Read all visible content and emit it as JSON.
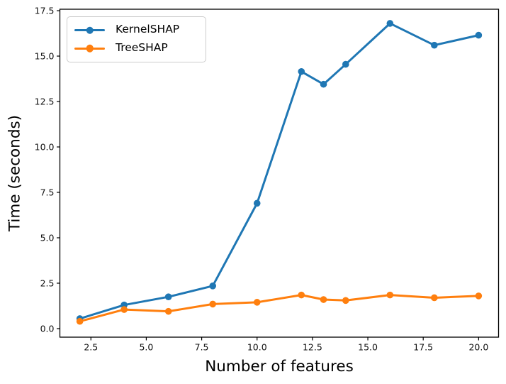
{
  "chart_data": {
    "type": "line",
    "title": "",
    "xlabel": "Number of features",
    "ylabel": "Time (seconds)",
    "x": [
      2,
      4,
      6,
      8,
      10,
      12,
      13,
      14,
      16,
      18,
      20
    ],
    "series": [
      {
        "name": "KernelSHAP",
        "color": "#1f77b4",
        "marker": "circle",
        "values": [
          0.55,
          1.3,
          1.75,
          2.35,
          6.9,
          14.15,
          13.45,
          14.55,
          16.8,
          15.6,
          16.15
        ]
      },
      {
        "name": "TreeSHAP",
        "color": "#ff7f0e",
        "marker": "circle",
        "values": [
          0.4,
          1.05,
          0.95,
          1.35,
          1.45,
          1.85,
          1.6,
          1.55,
          1.85,
          1.7,
          1.8
        ]
      }
    ],
    "xlim": [
      1.1,
      20.9
    ],
    "ylim": [
      -0.47,
      17.58
    ],
    "x_ticks": [
      2.5,
      5,
      7.5,
      10,
      12.5,
      15,
      17.5,
      20
    ],
    "x_tick_labels": [
      "2.5",
      "5.0",
      "7.5",
      "10.0",
      "12.5",
      "15.0",
      "17.5",
      "20.0"
    ],
    "y_ticks": [
      0,
      2.5,
      5,
      7.5,
      10,
      12.5,
      15,
      17.5
    ],
    "y_tick_labels": [
      "0.0",
      "2.5",
      "5.0",
      "7.5",
      "10.0",
      "12.5",
      "15.0",
      "17.5"
    ],
    "grid": false,
    "legend_position": "upper-left",
    "axis_color": "#000000",
    "background": "#ffffff"
  }
}
